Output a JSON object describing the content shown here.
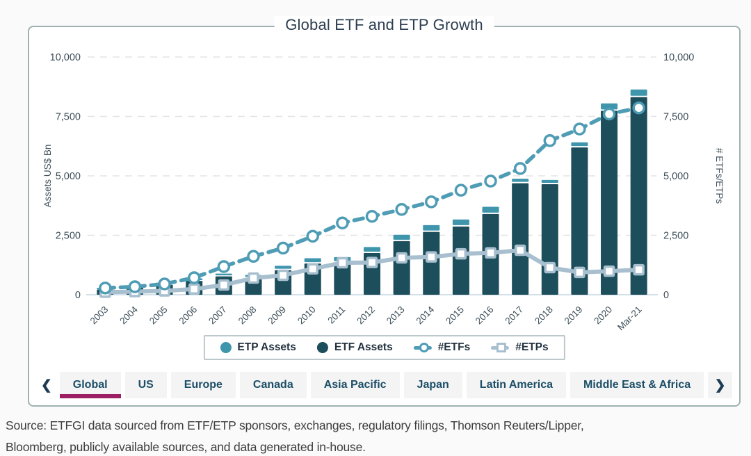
{
  "chart_data": {
    "type": "combo",
    "title": "Global ETF and ETP Growth",
    "categories": [
      "2003",
      "2004",
      "2005",
      "2006",
      "2007",
      "2008",
      "2009",
      "2010",
      "2011",
      "2012",
      "2013",
      "2014",
      "2015",
      "2016",
      "2017",
      "2018",
      "2019",
      "2020",
      "Mar-21"
    ],
    "series": [
      {
        "name": "ETF Assets",
        "type": "bar",
        "role": "bar-base",
        "color": "#1d4e5b",
        "values": [
          212,
          310,
          417,
          580,
          772,
          711,
          1036,
          1313,
          1355,
          1754,
          2254,
          2643,
          2870,
          3396,
          4690,
          4650,
          6194,
          7736,
          8310
        ]
      },
      {
        "name": "ETP Assets",
        "type": "bar",
        "role": "bar-cap",
        "color": "#3e95ac",
        "values": [
          18,
          24,
          33,
          48,
          58,
          62,
          122,
          165,
          170,
          195,
          210,
          225,
          235,
          245,
          130,
          120,
          160,
          255,
          265
        ]
      },
      {
        "name": "#ETFs",
        "type": "line",
        "style": "dashed",
        "marker": "circle",
        "color": "#4f9cb5",
        "values": [
          282,
          336,
          453,
          715,
          1184,
          1614,
          1962,
          2460,
          3019,
          3297,
          3588,
          3906,
          4396,
          4779,
          5309,
          6483,
          6970,
          7602,
          7860
        ]
      },
      {
        "name": "#ETPs",
        "type": "line",
        "style": "solid",
        "marker": "square",
        "color": "#a7bfce",
        "values": [
          105,
          130,
          160,
          240,
          410,
          700,
          820,
          1090,
          1345,
          1355,
          1550,
          1590,
          1720,
          1760,
          1870,
          1140,
          940,
          990,
          1050
        ]
      }
    ],
    "y_left": {
      "label": "Assets US$ Bn",
      "max": 10000,
      "tick_values": [
        0,
        2500,
        5000,
        7500,
        10000
      ],
      "tick_labels": [
        "0",
        "2,500",
        "5,000",
        "7,500",
        "10,000"
      ]
    },
    "y_right": {
      "label": "# ETFs/ETPs",
      "max": 10000,
      "tick_values": [
        0,
        2500,
        5000,
        7500,
        10000
      ],
      "tick_labels": [
        "0",
        "2,500",
        "5,000",
        "7,500",
        "10,000"
      ]
    },
    "grid": {
      "horizontal": "dashed",
      "color": "#e3e3e3"
    },
    "axis_text_color": "#3d4e58"
  },
  "legend": {
    "items": [
      {
        "label": "ETP Assets",
        "marker": "filled-circle",
        "color": "#3e95ac"
      },
      {
        "label": "ETF Assets",
        "marker": "filled-circle",
        "color": "#1d4e5b"
      },
      {
        "label": "#ETFs",
        "marker": "line-open-circle",
        "color": "#4f9cb5"
      },
      {
        "label": "#ETPs",
        "marker": "line-open-square",
        "color": "#a7bfce"
      }
    ]
  },
  "tabs": {
    "prev_icon": "❮",
    "next_icon": "❯",
    "items": [
      "Global",
      "US",
      "Europe",
      "Canada",
      "Asia Pacific",
      "Japan",
      "Latin America",
      "Middle East & Africa"
    ],
    "active": "Global",
    "active_underline_color": "#9d1f63"
  },
  "source": {
    "line1": "Source: ETFGI data sourced from ETF/ETP sponsors, exchanges, regulatory filings, Thomson Reuters/Lipper,",
    "line2": "Bloomberg, publicly available sources, and data generated in-house."
  }
}
